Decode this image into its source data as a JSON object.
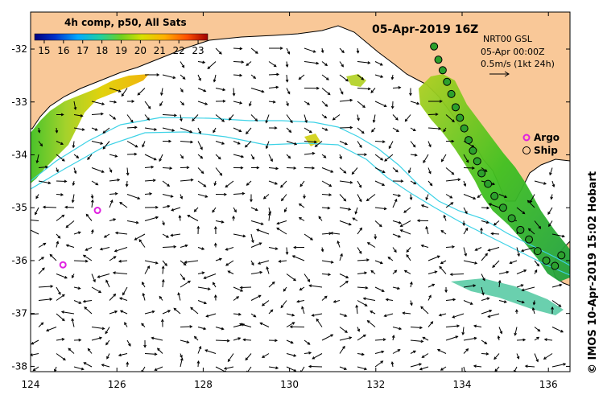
{
  "colorbar": {
    "title": "4h comp, p50, All Sats",
    "ticks": [
      "15",
      "16",
      "17",
      "18",
      "19",
      "20",
      "21",
      "22",
      "23"
    ],
    "range": [
      14.5,
      23.5
    ]
  },
  "date_title": "05-Apr-2019 16Z",
  "info": {
    "line1": "NRT00 GSL",
    "line2": "05-Apr 00:00Z",
    "line3": "0.5m/s (1kt 24h)"
  },
  "legend": {
    "argo_label": "Argo",
    "ship_label": "Ship"
  },
  "axes": {
    "x_ticks": [
      "124",
      "126",
      "128",
      "130",
      "132",
      "134",
      "136"
    ],
    "y_ticks": [
      "-32",
      "-33",
      "-34",
      "-35",
      "-36",
      "-37",
      "-38"
    ],
    "lon_range": [
      124,
      136.5
    ],
    "lat_range": [
      -38.1,
      -31.3
    ]
  },
  "argo_floats": [
    {
      "lon": 125.55,
      "lat": -35.05
    },
    {
      "lon": 124.75,
      "lat": -36.08
    }
  ],
  "ship_track": [
    {
      "lon": 133.35,
      "lat": -31.95
    },
    {
      "lon": 133.45,
      "lat": -32.2
    },
    {
      "lon": 133.55,
      "lat": -32.4
    },
    {
      "lon": 133.65,
      "lat": -32.62
    },
    {
      "lon": 133.75,
      "lat": -32.85
    },
    {
      "lon": 133.85,
      "lat": -33.1
    },
    {
      "lon": 133.95,
      "lat": -33.3
    },
    {
      "lon": 134.05,
      "lat": -33.5
    },
    {
      "lon": 134.15,
      "lat": -33.72
    },
    {
      "lon": 134.25,
      "lat": -33.92
    },
    {
      "lon": 134.35,
      "lat": -34.12
    },
    {
      "lon": 134.45,
      "lat": -34.35
    },
    {
      "lon": 134.6,
      "lat": -34.55
    },
    {
      "lon": 134.75,
      "lat": -34.78
    },
    {
      "lon": 134.95,
      "lat": -35.0
    },
    {
      "lon": 135.15,
      "lat": -35.2
    },
    {
      "lon": 135.35,
      "lat": -35.42
    },
    {
      "lon": 135.55,
      "lat": -35.6
    },
    {
      "lon": 135.75,
      "lat": -35.82
    },
    {
      "lon": 135.95,
      "lat": -36.0
    },
    {
      "lon": 136.15,
      "lat": -36.1
    },
    {
      "lon": 136.3,
      "lat": -35.9
    }
  ],
  "credit": "© IMOS 10-Apr-2019 15:02 Hobart",
  "colors": {
    "land": "#f9c898",
    "ocean": "#ffffff",
    "contour": "#3cd2e6",
    "argo": "#e020e0",
    "ship_fill": "#2ca02c"
  }
}
